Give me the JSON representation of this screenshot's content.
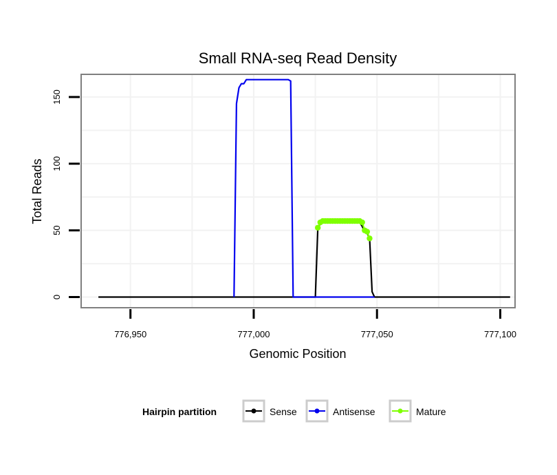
{
  "chart_data": {
    "type": "line",
    "title": "Small RNA-seq Read Density",
    "xlabel": "Genomic Position",
    "ylabel": "Total Reads",
    "xlim": [
      776930,
      777106
    ],
    "ylim": [
      -8,
      167
    ],
    "x_ticks": [
      776950,
      777000,
      777050,
      777100
    ],
    "x_tick_labels": [
      "776,950",
      "777,000",
      "777,050",
      "777,100"
    ],
    "y_ticks": [
      0,
      50,
      100,
      150
    ],
    "y_tick_labels": [
      "0",
      "50",
      "100",
      "150"
    ],
    "grid": true,
    "legend": {
      "title": "Hairpin partition",
      "position": "bottom"
    },
    "series": [
      {
        "name": "Sense",
        "color": "#000000",
        "show_points": false,
        "points": [
          [
            776937,
            0
          ],
          [
            777025,
            0
          ],
          [
            777026,
            52
          ],
          [
            777027,
            55
          ],
          [
            777028,
            56
          ],
          [
            777043,
            56
          ],
          [
            777044,
            53
          ],
          [
            777045,
            49
          ],
          [
            777046,
            48
          ],
          [
            777047,
            44
          ],
          [
            777048,
            4
          ],
          [
            777049,
            0
          ],
          [
            777104,
            0
          ]
        ]
      },
      {
        "name": "Antisense",
        "color": "#0000ee",
        "show_points": false,
        "points": [
          [
            776992,
            0
          ],
          [
            776993,
            145
          ],
          [
            776994,
            157
          ],
          [
            776995,
            160
          ],
          [
            776996,
            160
          ],
          [
            776997,
            163
          ],
          [
            777014,
            163
          ],
          [
            777015,
            162
          ],
          [
            777016,
            0
          ],
          [
            777049,
            0
          ]
        ]
      },
      {
        "name": "Mature",
        "color": "#7fff00",
        "show_points": true,
        "points": [
          [
            777026,
            52
          ],
          [
            777027,
            56
          ],
          [
            777028,
            57
          ],
          [
            777029,
            57
          ],
          [
            777030,
            57
          ],
          [
            777031,
            57
          ],
          [
            777032,
            57
          ],
          [
            777033,
            57
          ],
          [
            777034,
            57
          ],
          [
            777035,
            57
          ],
          [
            777036,
            57
          ],
          [
            777037,
            57
          ],
          [
            777038,
            57
          ],
          [
            777039,
            57
          ],
          [
            777040,
            57
          ],
          [
            777041,
            57
          ],
          [
            777042,
            57
          ],
          [
            777043,
            57
          ],
          [
            777044,
            56
          ],
          [
            777045,
            50
          ],
          [
            777046,
            49
          ],
          [
            777047,
            44
          ]
        ]
      }
    ]
  }
}
